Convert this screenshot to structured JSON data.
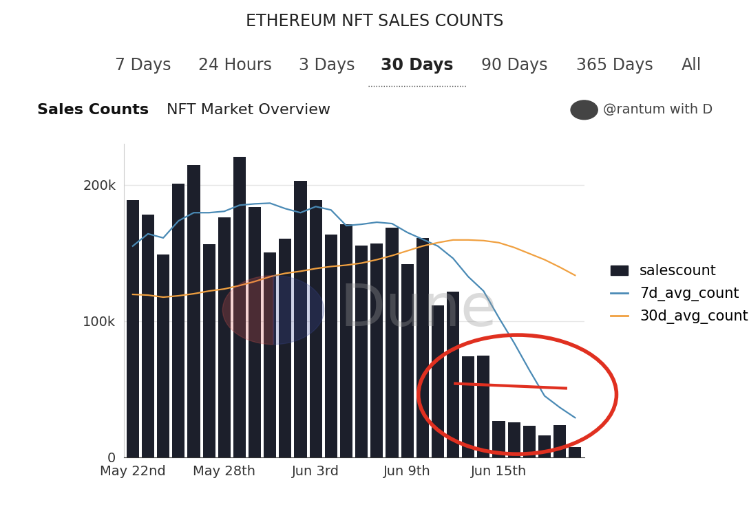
{
  "chart_data": {
    "type": "bar",
    "title": "ETHEREUM NFT SALES COUNTS",
    "tabs": [
      "7 Days",
      "24 Hours",
      "3 Days",
      "30 Days",
      "90 Days",
      "365 Days",
      "All"
    ],
    "selected_tab": "30 Days",
    "subtitle": "Sales Counts",
    "annotations": [
      "NFT Market Overview",
      "@rantum with D"
    ],
    "watermark": "Dune",
    "categories": [
      "May 22nd",
      null,
      null,
      null,
      null,
      null,
      "May 28th",
      null,
      null,
      null,
      null,
      null,
      "Jun 3rd",
      null,
      null,
      null,
      null,
      null,
      "Jun 9th",
      null,
      null,
      null,
      null,
      null,
      "Jun 15th",
      null,
      null,
      null,
      null,
      null
    ],
    "series": [
      {
        "name": "salescount",
        "type": "bar",
        "color": "#1c1f2b",
        "values": [
          188500,
          178000,
          149000,
          201000,
          214500,
          156500,
          176000,
          220500,
          183500,
          150500,
          160500,
          203000,
          188500,
          163500,
          171000,
          155500,
          157000,
          168500,
          141500,
          161000,
          111500,
          121500,
          74000,
          74500,
          26500,
          25500,
          23000,
          16000,
          23500,
          7500
        ]
      },
      {
        "name": "7d_avg_count",
        "type": "line",
        "color": "#4a8ab5",
        "values": [
          155000,
          164000,
          161000,
          173500,
          179500,
          179500,
          180500,
          185000,
          186000,
          186500,
          182500,
          179500,
          184000,
          181500,
          170000,
          171000,
          172500,
          171500,
          165000,
          160000,
          155000,
          146000,
          132500,
          122000,
          102500,
          84000,
          64000,
          45000,
          36500,
          29000
        ]
      },
      {
        "name": "30d_avg_count",
        "type": "line",
        "color": "#f0a040",
        "values": [
          119500,
          119000,
          117500,
          118500,
          120000,
          122000,
          123500,
          126000,
          129000,
          132500,
          135000,
          136500,
          138500,
          140000,
          141000,
          142500,
          145000,
          148000,
          151500,
          155000,
          157500,
          159500,
          159500,
          159000,
          157500,
          154000,
          149500,
          145000,
          139500,
          133500
        ]
      }
    ],
    "ylim": [
      0,
      230000
    ],
    "yticks": [
      0,
      {
        "value": 100000,
        "label": "100k"
      },
      {
        "value": 200000,
        "label": "200k"
      }
    ],
    "grid": true,
    "legend": "right"
  }
}
